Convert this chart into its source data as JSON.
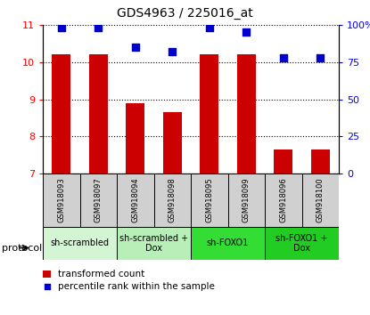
{
  "title": "GDS4963 / 225016_at",
  "samples": [
    "GSM918093",
    "GSM918097",
    "GSM918094",
    "GSM918098",
    "GSM918095",
    "GSM918099",
    "GSM918096",
    "GSM918100"
  ],
  "bar_values": [
    10.2,
    10.2,
    8.9,
    8.65,
    10.2,
    10.2,
    7.65,
    7.65
  ],
  "percentile_values": [
    98,
    98,
    85,
    82,
    98,
    95,
    78,
    78
  ],
  "ylim_left": [
    7,
    11
  ],
  "ylim_right": [
    0,
    100
  ],
  "yticks_left": [
    7,
    8,
    9,
    10,
    11
  ],
  "yticks_right": [
    0,
    25,
    50,
    75,
    100
  ],
  "ytick_labels_right": [
    "0",
    "25",
    "50",
    "75",
    "100%"
  ],
  "bar_color": "#cc0000",
  "dot_color": "#0000cc",
  "groups": [
    {
      "label": "sh-scrambled",
      "start": 0,
      "end": 2,
      "color": "#d4f5d4"
    },
    {
      "label": "sh-scrambled +\nDox",
      "start": 2,
      "end": 4,
      "color": "#b8eeb8"
    },
    {
      "label": "sh-FOXO1",
      "start": 4,
      "end": 6,
      "color": "#33dd33"
    },
    {
      "label": "sh-FOXO1 +\nDox",
      "start": 6,
      "end": 8,
      "color": "#22cc22"
    }
  ],
  "protocol_label": "protocol",
  "legend_bar_label": "transformed count",
  "legend_dot_label": "percentile rank within the sample",
  "bar_color_legend": "#cc0000",
  "dot_color_legend": "#0000cc",
  "bar_width": 0.5,
  "dot_size": 30,
  "sample_box_color": "#d0d0d0",
  "title_fontsize": 10,
  "tick_fontsize": 8,
  "sample_fontsize": 6,
  "group_fontsize": 7,
  "legend_fontsize": 7.5
}
